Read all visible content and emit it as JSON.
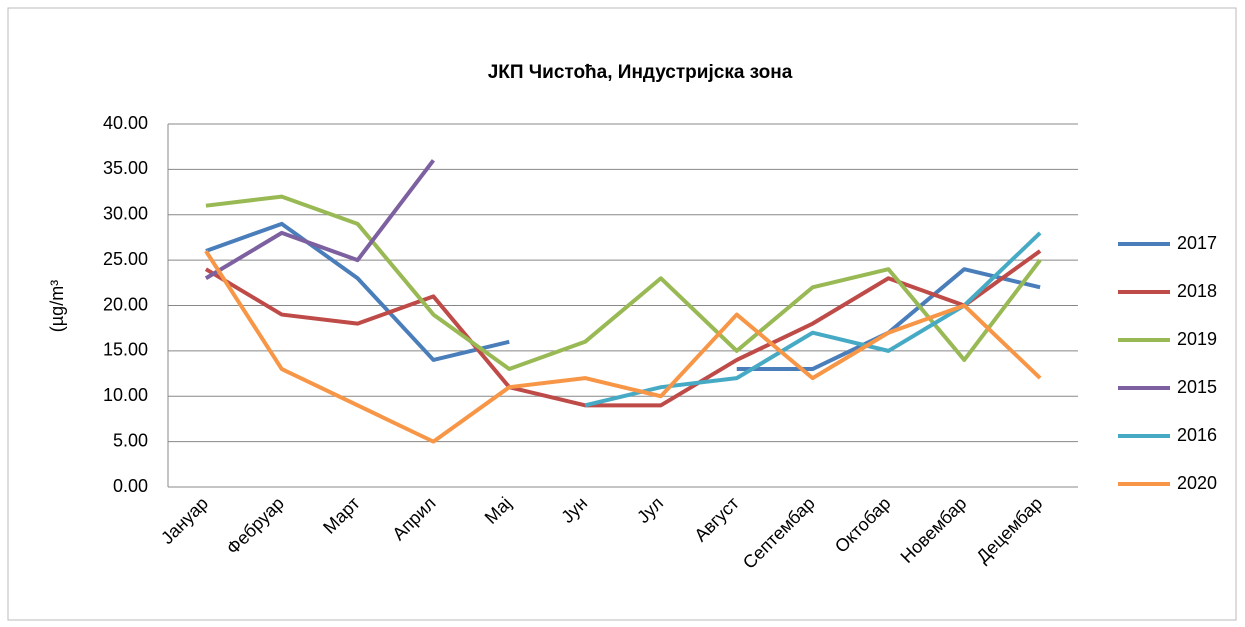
{
  "chart_data": {
    "type": "line",
    "title": "ЈКП Чистоћа, Индустријска зона",
    "y_label": "(µg/m³",
    "categories": [
      "Јануар",
      "Фебруар",
      "Март",
      "Април",
      "Мај",
      "Јун",
      "Јул",
      "Август",
      "Септембар",
      "Октобар",
      "Новембар",
      "Децембар"
    ],
    "series": [
      {
        "name": "2017",
        "color": "#4a7ebb",
        "values": [
          26,
          29,
          23,
          14,
          16,
          null,
          null,
          13,
          13,
          17,
          24,
          22
        ]
      },
      {
        "name": "2018",
        "color": "#be4b48",
        "values": [
          24,
          19,
          18,
          21,
          11,
          9,
          9,
          14,
          18,
          23,
          20,
          26
        ]
      },
      {
        "name": "2019",
        "color": "#98b954",
        "values": [
          31,
          32,
          29,
          19,
          13,
          16,
          23,
          15,
          22,
          24,
          14,
          25
        ]
      },
      {
        "name": "2015",
        "color": "#7d60a0",
        "values": [
          23,
          28,
          25,
          36,
          null,
          null,
          null,
          null,
          null,
          null,
          null,
          null
        ]
      },
      {
        "name": "2016",
        "color": "#46aac5",
        "values": [
          null,
          null,
          null,
          null,
          null,
          9,
          11,
          12,
          17,
          15,
          20,
          28
        ]
      },
      {
        "name": "2020",
        "color": "#f79646",
        "values": [
          26,
          13,
          9,
          5,
          11,
          12,
          10,
          19,
          12,
          17,
          20,
          12
        ]
      }
    ],
    "ylim": [
      0,
      40
    ],
    "yticks": [
      {
        "value": 0,
        "label": "0.00"
      },
      {
        "value": 5,
        "label": "5.00"
      },
      {
        "value": 10,
        "label": "10.00"
      },
      {
        "value": 15,
        "label": "15.00"
      },
      {
        "value": 20,
        "label": "20.00"
      },
      {
        "value": 25,
        "label": "25.00"
      },
      {
        "value": 30,
        "label": "30.00"
      },
      {
        "value": 35,
        "label": "35.00"
      },
      {
        "value": 40,
        "label": "40.00"
      }
    ],
    "grid": true,
    "legend": "right"
  }
}
